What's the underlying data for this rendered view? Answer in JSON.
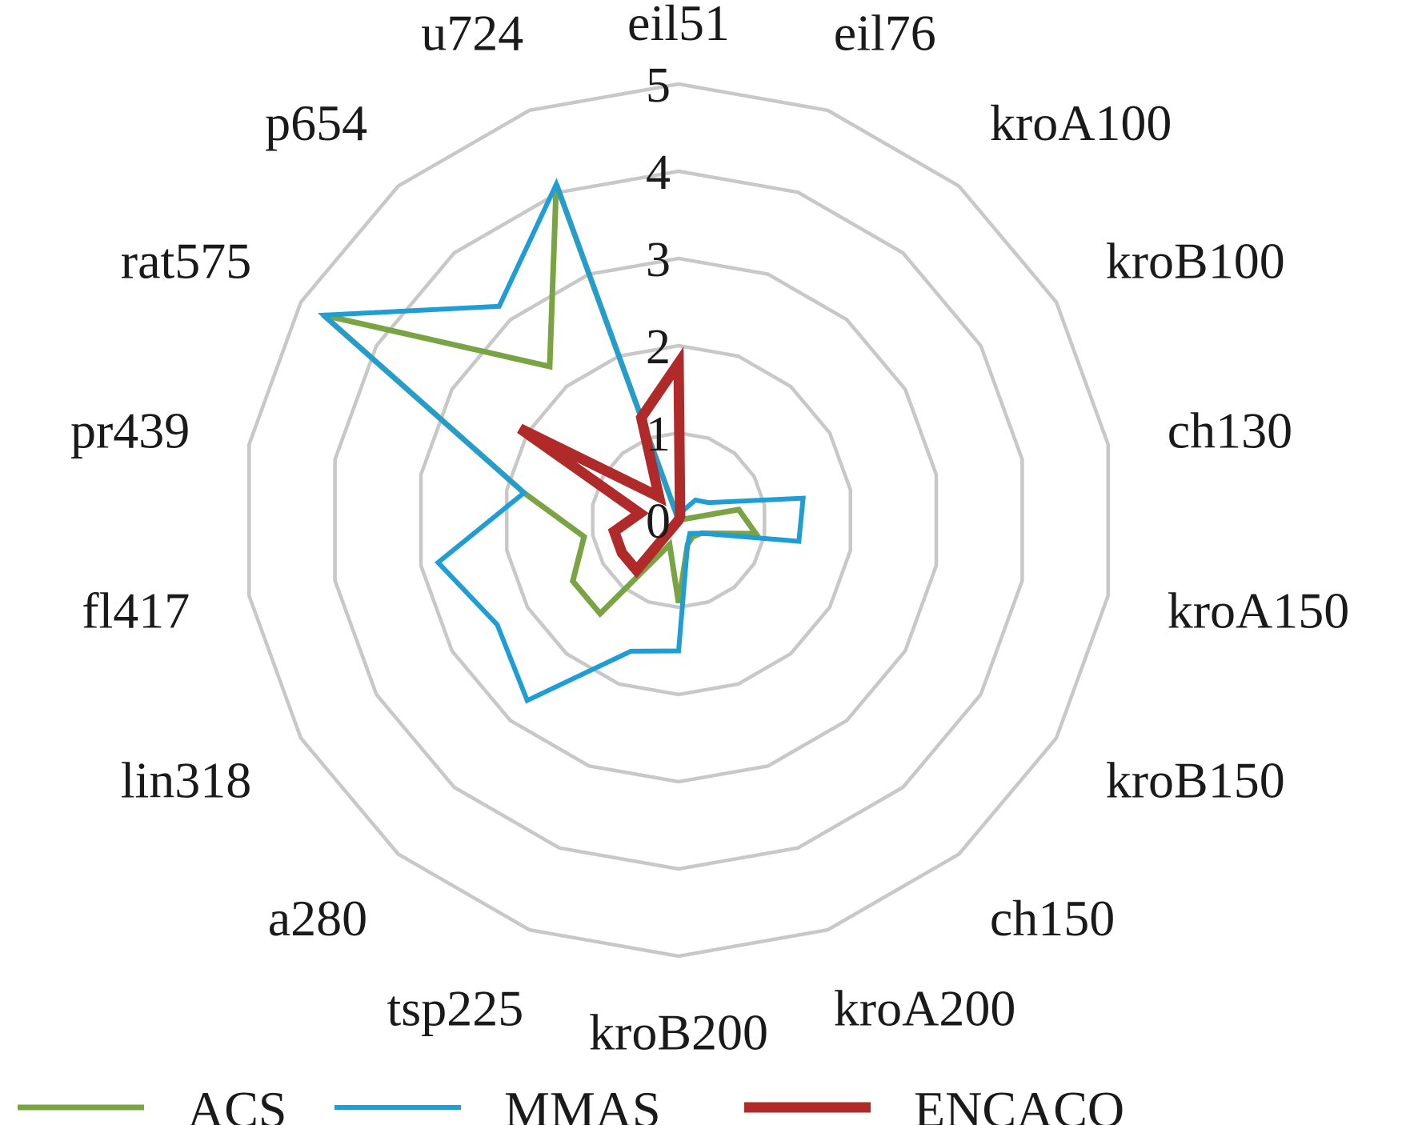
{
  "chart_data": {
    "type": "radar",
    "categories": [
      "eil51",
      "eil76",
      "kroA100",
      "kroB100",
      "ch130",
      "kroA150",
      "kroB150",
      "ch150",
      "kroA200",
      "kroB200",
      "tsp225",
      "a280",
      "lin318",
      "fl417",
      "pr439",
      "rat575",
      "p654",
      "u724"
    ],
    "rlim": [
      0,
      5
    ],
    "ticks": [
      "0",
      "1",
      "2",
      "3",
      "4",
      "5"
    ],
    "grid": true,
    "legend": "bottom",
    "series": [
      {
        "name": "ACS",
        "color": "#7aa444",
        "values": [
          0,
          0.05,
          0,
          0,
          0.7,
          0.9,
          0.3,
          0.25,
          0.3,
          0.95,
          0.3,
          1.4,
          1.4,
          1.1,
          1.8,
          4.7,
          2.3,
          4.1
        ]
      },
      {
        "name": "MMAS",
        "color": "#1f9ed6",
        "values": [
          0,
          0.1,
          0.3,
          0.4,
          1.45,
          1.4,
          0.3,
          0.2,
          0.3,
          1.5,
          1.6,
          2.7,
          2.4,
          2.8,
          1.8,
          4.7,
          3.2,
          4.1
        ]
      },
      {
        "name": "ENCACO",
        "color": "#b02a2a",
        "values": [
          1.8,
          0.05,
          0,
          0,
          0,
          0,
          0,
          0,
          0,
          0,
          0,
          0.75,
          0.75,
          0.75,
          0.45,
          2.1,
          0.35,
          1.25
        ]
      }
    ]
  }
}
